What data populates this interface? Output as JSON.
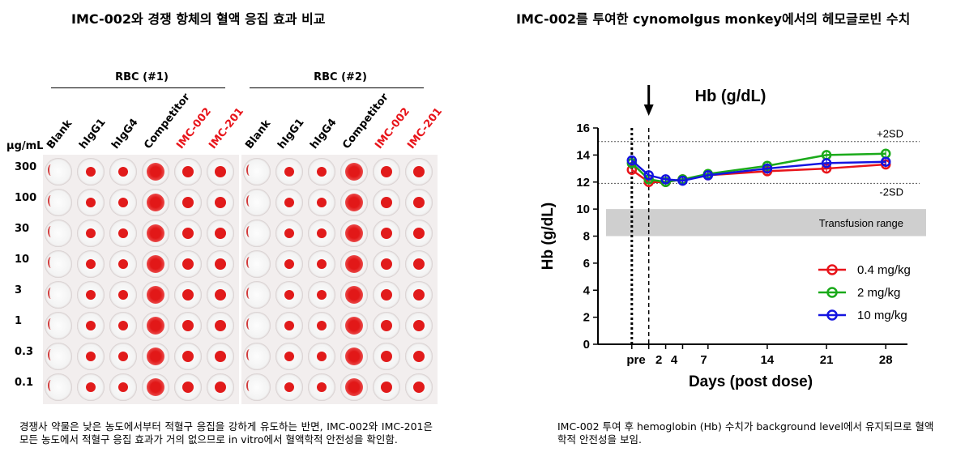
{
  "left_panel": {
    "title": "IMC-002와 경쟁 항체의 혈액 응집 효과 비교",
    "unit": "μg/mL",
    "groups": [
      {
        "label": "RBC (#1)",
        "columns": [
          "Blank",
          "hIgG1",
          "hIgG4",
          "Competitor",
          "IMC-002",
          "IMC-201"
        ]
      },
      {
        "label": "RBC (#2)",
        "columns": [
          "Blank",
          "hIgG1",
          "hIgG4",
          "Competitor",
          "IMC-002",
          "IMC-201"
        ]
      }
    ],
    "highlight_columns": [
      "IMC-002",
      "IMC-201"
    ],
    "concentrations": [
      "300",
      "100",
      "30",
      "10",
      "3",
      "1",
      "0.3",
      "0.1"
    ],
    "caption": "경쟁사 약물은 낮은 농도에서부터 적혈구 응집을 강하게 유도하는 반면, IMC-002와 IMC-201은 모든 농도에서 적혈구 응집 효과가 거의 없으므로 in vitro에서 혈액학적 안전성을 확인함."
  },
  "right_panel": {
    "title": "IMC-002를 투여한 cynomolgus monkey에서의 헤모글로빈 수치",
    "caption": "IMC-002 투여 후 hemoglobin (Hb) 수치가 background level에서 유지되므로 혈액학적 안전성을 보임."
  },
  "chart_data": {
    "type": "line",
    "title": "Hb (g/dL)",
    "xlabel": "Days (post dose)",
    "ylabel": "Hb (g/dL)",
    "x_tick_labels": [
      "pre",
      "2",
      "4",
      "7",
      "14",
      "21",
      "28"
    ],
    "x": [
      -2,
      0,
      2,
      4,
      7,
      14,
      21,
      28
    ],
    "x_note": "x values are days; 'pre' plotted at -2, dosing marker at 0",
    "ylim": [
      0,
      16
    ],
    "yticks": [
      0,
      2,
      4,
      6,
      8,
      10,
      12,
      14,
      16
    ],
    "reference_lines": [
      {
        "label": "+2SD",
        "y": 15.0
      },
      {
        "label": "-2SD",
        "y": 11.9
      }
    ],
    "band": {
      "label": "Transfusion range",
      "y": [
        8,
        10
      ]
    },
    "dose_arrow_x": 0,
    "series": [
      {
        "name": "0.4 mg/kg",
        "color": "#e8141a",
        "x": [
          -2,
          0,
          2,
          4,
          7,
          14,
          21,
          28
        ],
        "values": [
          12.9,
          12.0,
          12.0,
          12.2,
          12.5,
          12.8,
          13.0,
          13.3
        ]
      },
      {
        "name": "2 mg/kg",
        "color": "#1aaa1a",
        "x": [
          -2,
          0,
          2,
          4,
          7,
          14,
          21,
          28
        ],
        "values": [
          13.4,
          12.2,
          12.0,
          12.2,
          12.6,
          13.2,
          14.0,
          14.1
        ]
      },
      {
        "name": "10 mg/kg",
        "color": "#1414e0",
        "x": [
          -2,
          0,
          2,
          4,
          7,
          14,
          21,
          28
        ],
        "values": [
          13.6,
          12.5,
          12.2,
          12.1,
          12.5,
          13.0,
          13.4,
          13.5
        ]
      }
    ],
    "legend_position": "bottom-right",
    "grid": false
  }
}
